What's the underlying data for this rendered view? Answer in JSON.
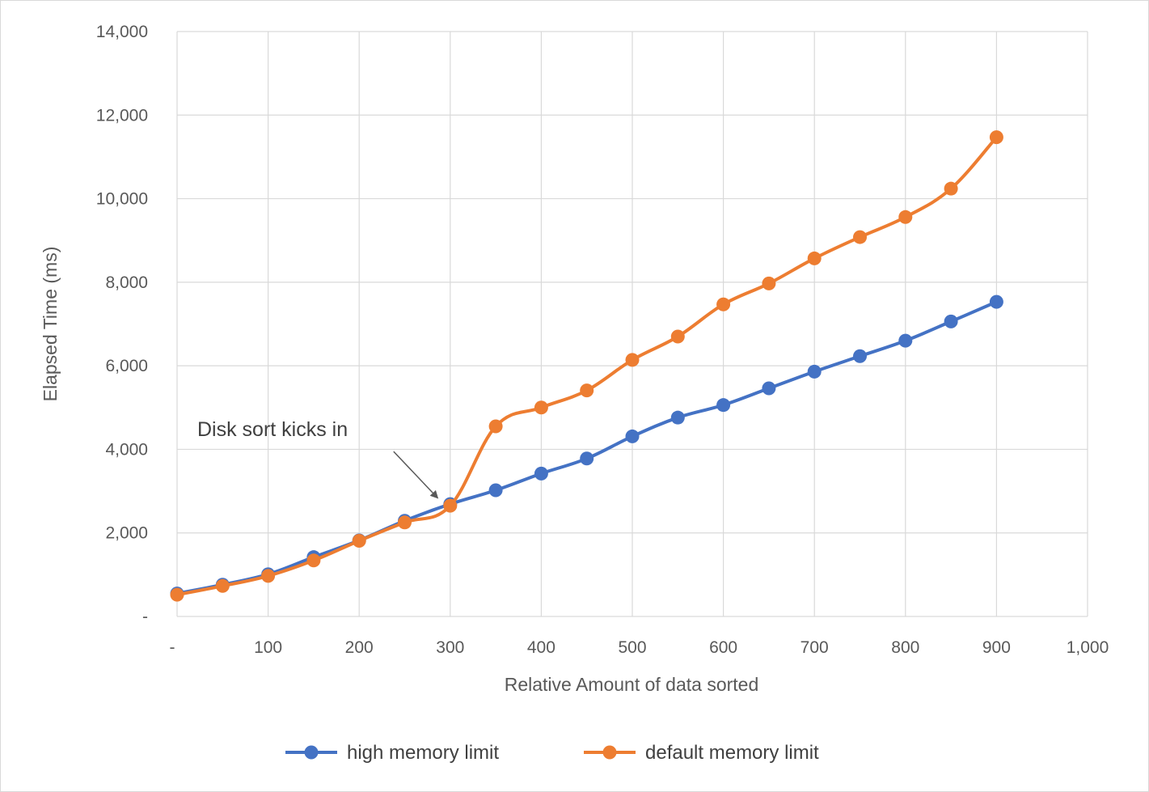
{
  "chart_data": {
    "type": "line",
    "title": "",
    "xlabel": "Relative Amount of data sorted",
    "ylabel": "Elapsed Time (ms)",
    "xlim": [
      0,
      1000
    ],
    "ylim": [
      0,
      14000
    ],
    "x_ticks": [
      0,
      100,
      200,
      300,
      400,
      500,
      600,
      700,
      800,
      900,
      1000
    ],
    "x_tick_labels": [
      "-",
      "100",
      "200",
      "300",
      "400",
      "500",
      "600",
      "700",
      "800",
      "900",
      "1,000"
    ],
    "y_ticks": [
      0,
      2000,
      4000,
      6000,
      8000,
      10000,
      12000,
      14000
    ],
    "y_tick_labels": [
      "-",
      "2,000",
      "4,000",
      "6,000",
      "8,000",
      "10,000",
      "12,000",
      "14,000"
    ],
    "grid": true,
    "legend_position": "bottom",
    "x": [
      0,
      50,
      100,
      150,
      200,
      250,
      300,
      350,
      400,
      450,
      500,
      550,
      600,
      650,
      700,
      750,
      800,
      850,
      900
    ],
    "series": [
      {
        "name": "high memory limit",
        "color": "#4472c4",
        "values": [
          550,
          760,
          1010,
          1420,
          1820,
          2290,
          2690,
          3020,
          3420,
          3780,
          4310,
          4760,
          5060,
          5460,
          5860,
          6230,
          6600,
          7060,
          7530
        ]
      },
      {
        "name": "default memory limit",
        "color": "#ed7d31",
        "values": [
          520,
          730,
          970,
          1340,
          1810,
          2250,
          2650,
          4550,
          5000,
          5410,
          6140,
          6700,
          7470,
          7970,
          8570,
          9080,
          9560,
          10240,
          11470
        ]
      }
    ],
    "annotations": [
      {
        "text": "Disk sort kicks in",
        "x": 300,
        "y": 2690
      }
    ]
  }
}
